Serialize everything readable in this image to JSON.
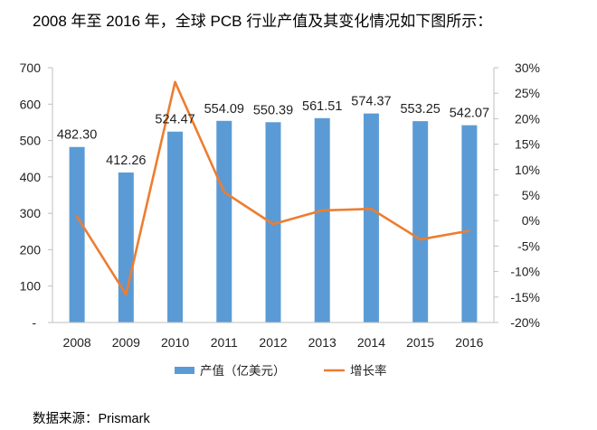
{
  "heading": "2008 年至 2016 年，全球 PCB 行业产值及其变化情况如下图所示：",
  "source": "数据来源：Prismark",
  "colors": {
    "bar": "#5b9bd5",
    "line": "#ed7d31",
    "axis": "#bfbfbf"
  },
  "chart_data": {
    "type": "bar",
    "categories": [
      "2008",
      "2009",
      "2010",
      "2011",
      "2012",
      "2013",
      "2014",
      "2015",
      "2016"
    ],
    "series": [
      {
        "name": "产值（亿美元）",
        "type": "bar",
        "axis": "left",
        "values": [
          482.3,
          412.26,
          524.47,
          554.09,
          550.39,
          561.51,
          574.37,
          553.25,
          542.07
        ],
        "labels": [
          "482.30",
          "412.26",
          "524.47",
          "554.09",
          "550.39",
          "561.51",
          "574.37",
          "553.25",
          "542.07"
        ]
      },
      {
        "name": "增长率",
        "type": "line",
        "axis": "right",
        "values": [
          0.8,
          -14.5,
          27.2,
          5.6,
          -0.7,
          2.0,
          2.3,
          -3.7,
          -2.0
        ]
      }
    ],
    "y_left": {
      "min": 0,
      "max": 700,
      "ticks": [
        "-",
        "100",
        "200",
        "300",
        "400",
        "500",
        "600",
        "700"
      ]
    },
    "y_right": {
      "min": -20,
      "max": 30,
      "ticks": [
        "-20%",
        "-15%",
        "-10%",
        "-5%",
        "0%",
        "5%",
        "10%",
        "15%",
        "20%",
        "25%",
        "30%"
      ]
    },
    "legend": {
      "position": "bottom"
    },
    "grid": false
  }
}
